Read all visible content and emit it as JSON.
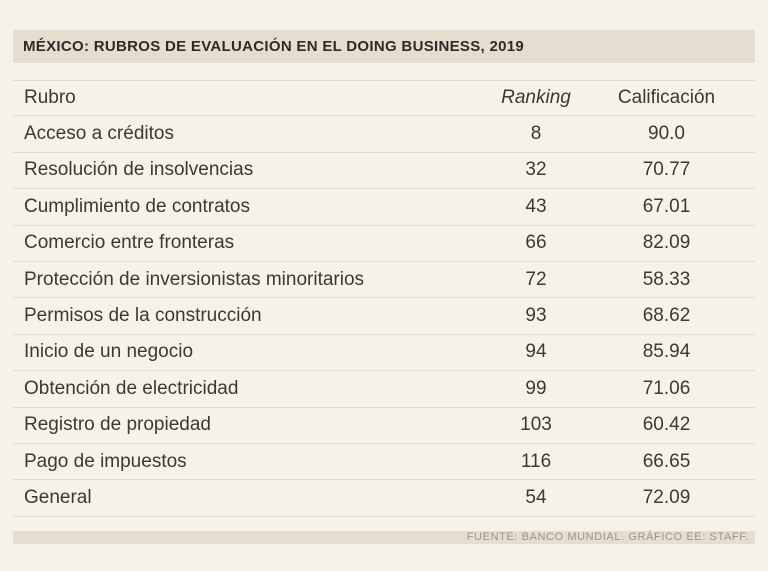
{
  "title": "MÉXICO: RUBROS DE EVALUACIÓN EN EL DOING BUSINESS, 2019",
  "columns": {
    "rubro": "Rubro",
    "ranking": "Ranking",
    "calificacion": "Calificación"
  },
  "rows": [
    {
      "rubro": "Acceso a créditos",
      "ranking": "8",
      "calificacion": "90.0"
    },
    {
      "rubro": "Resolución de insolvencias",
      "ranking": "32",
      "calificacion": "70.77"
    },
    {
      "rubro": "Cumplimiento de contratos",
      "ranking": "43",
      "calificacion": "67.01"
    },
    {
      "rubro": "Comercio entre fronteras",
      "ranking": "66",
      "calificacion": "82.09"
    },
    {
      "rubro": "Protección de inversionistas minoritarios",
      "ranking": "72",
      "calificacion": "58.33"
    },
    {
      "rubro": "Permisos de la construcción",
      "ranking": "93",
      "calificacion": "68.62"
    },
    {
      "rubro": "Inicio de un negocio",
      "ranking": "94",
      "calificacion": "85.94"
    },
    {
      "rubro": "Obtención de electricidad",
      "ranking": "99",
      "calificacion": "71.06"
    },
    {
      "rubro": "Registro de propiedad",
      "ranking": "103",
      "calificacion": "60.42"
    },
    {
      "rubro": "Pago de impuestos",
      "ranking": "116",
      "calificacion": "66.65"
    },
    {
      "rubro": "General",
      "ranking": "54",
      "calificacion": "72.09"
    }
  ],
  "source": "FUENTE: BANCO MUNDIAL. GRÁFICO EE: STAFF."
}
